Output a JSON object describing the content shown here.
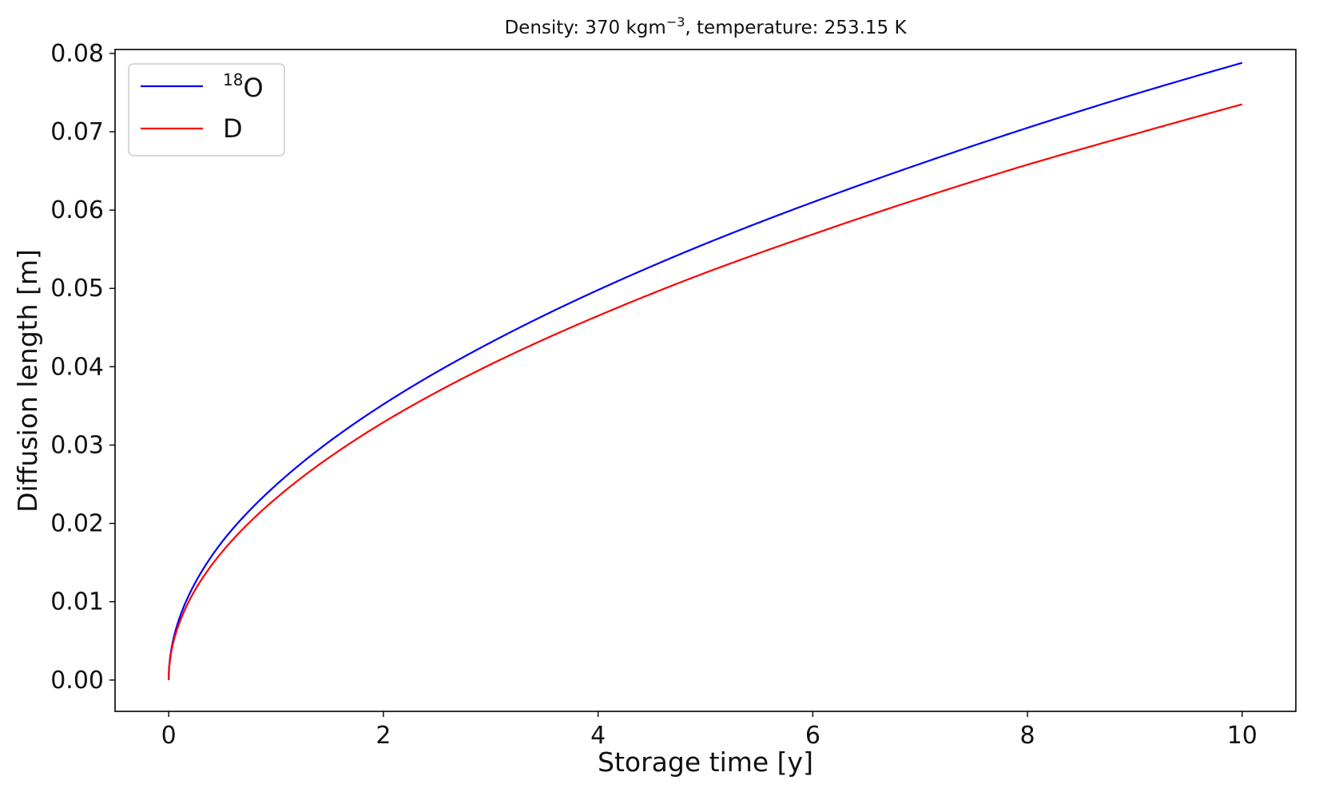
{
  "chart_data": {
    "type": "line",
    "title_prefix": "Density: 370 kgm",
    "title_sup": "−3",
    "title_suffix": ", temperature: 253.15 K",
    "xlabel": "Storage time [y]",
    "ylabel": "Diffusion length [m]",
    "xlim": [
      -0.5,
      10.5
    ],
    "ylim": [
      -0.004,
      0.0805
    ],
    "xticks": [
      0,
      2,
      4,
      6,
      8,
      10
    ],
    "xtick_labels": [
      "0",
      "2",
      "4",
      "6",
      "8",
      "10"
    ],
    "yticks": [
      0,
      0.01,
      0.02,
      0.03,
      0.04,
      0.05,
      0.06,
      0.07,
      0.08
    ],
    "ytick_labels": [
      "0.00",
      "0.01",
      "0.02",
      "0.03",
      "0.04",
      "0.05",
      "0.06",
      "0.07",
      "0.08"
    ],
    "grid": false,
    "legend_position": "top-left",
    "x": [
      0,
      0.01,
      0.05,
      0.1,
      0.25,
      0.5,
      1,
      2,
      3,
      4,
      5,
      6,
      7,
      8,
      9,
      10
    ],
    "series": [
      {
        "name_sup": "18",
        "name_main": "O",
        "color": "#0000ff",
        "values": [
          0,
          0.0025,
          0.0056,
          0.0079,
          0.0125,
          0.0177,
          0.0249,
          0.0352,
          0.0431,
          0.0498,
          0.0557,
          0.061,
          0.0659,
          0.0705,
          0.0748,
          0.0788
        ]
      },
      {
        "name_sup": "",
        "name_main": "D",
        "color": "#ff0000",
        "values": [
          0,
          0.0023,
          0.0052,
          0.0073,
          0.0116,
          0.0164,
          0.0232,
          0.0329,
          0.0403,
          0.0465,
          0.052,
          0.0569,
          0.0615,
          0.0658,
          0.0697,
          0.0735
        ]
      }
    ]
  }
}
